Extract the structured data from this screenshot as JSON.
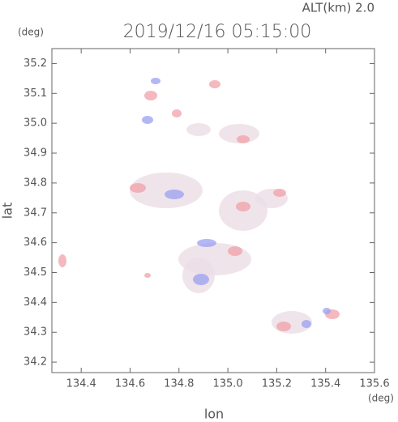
{
  "chart_data": {
    "type": "map",
    "title": "2019/12/16 05:15:00",
    "subtitle": "ALT(km) 2.0",
    "x_label": "lon",
    "y_label": "lat",
    "x_unit": "(deg)",
    "y_unit": "(deg)",
    "xlim": [
      134.28,
      135.6
    ],
    "ylim": [
      34.165,
      35.25
    ],
    "xticks": [
      134.4,
      134.6,
      134.8,
      {
        "value": 135,
        "label": "135.0"
      },
      135.2,
      135.4,
      135.6
    ],
    "yticks": [
      34.2,
      34.3,
      34.4,
      34.5,
      34.6,
      34.7,
      34.8,
      34.9,
      {
        "value": 35,
        "label": "35.0"
      },
      35.1,
      35.2
    ]
  }
}
